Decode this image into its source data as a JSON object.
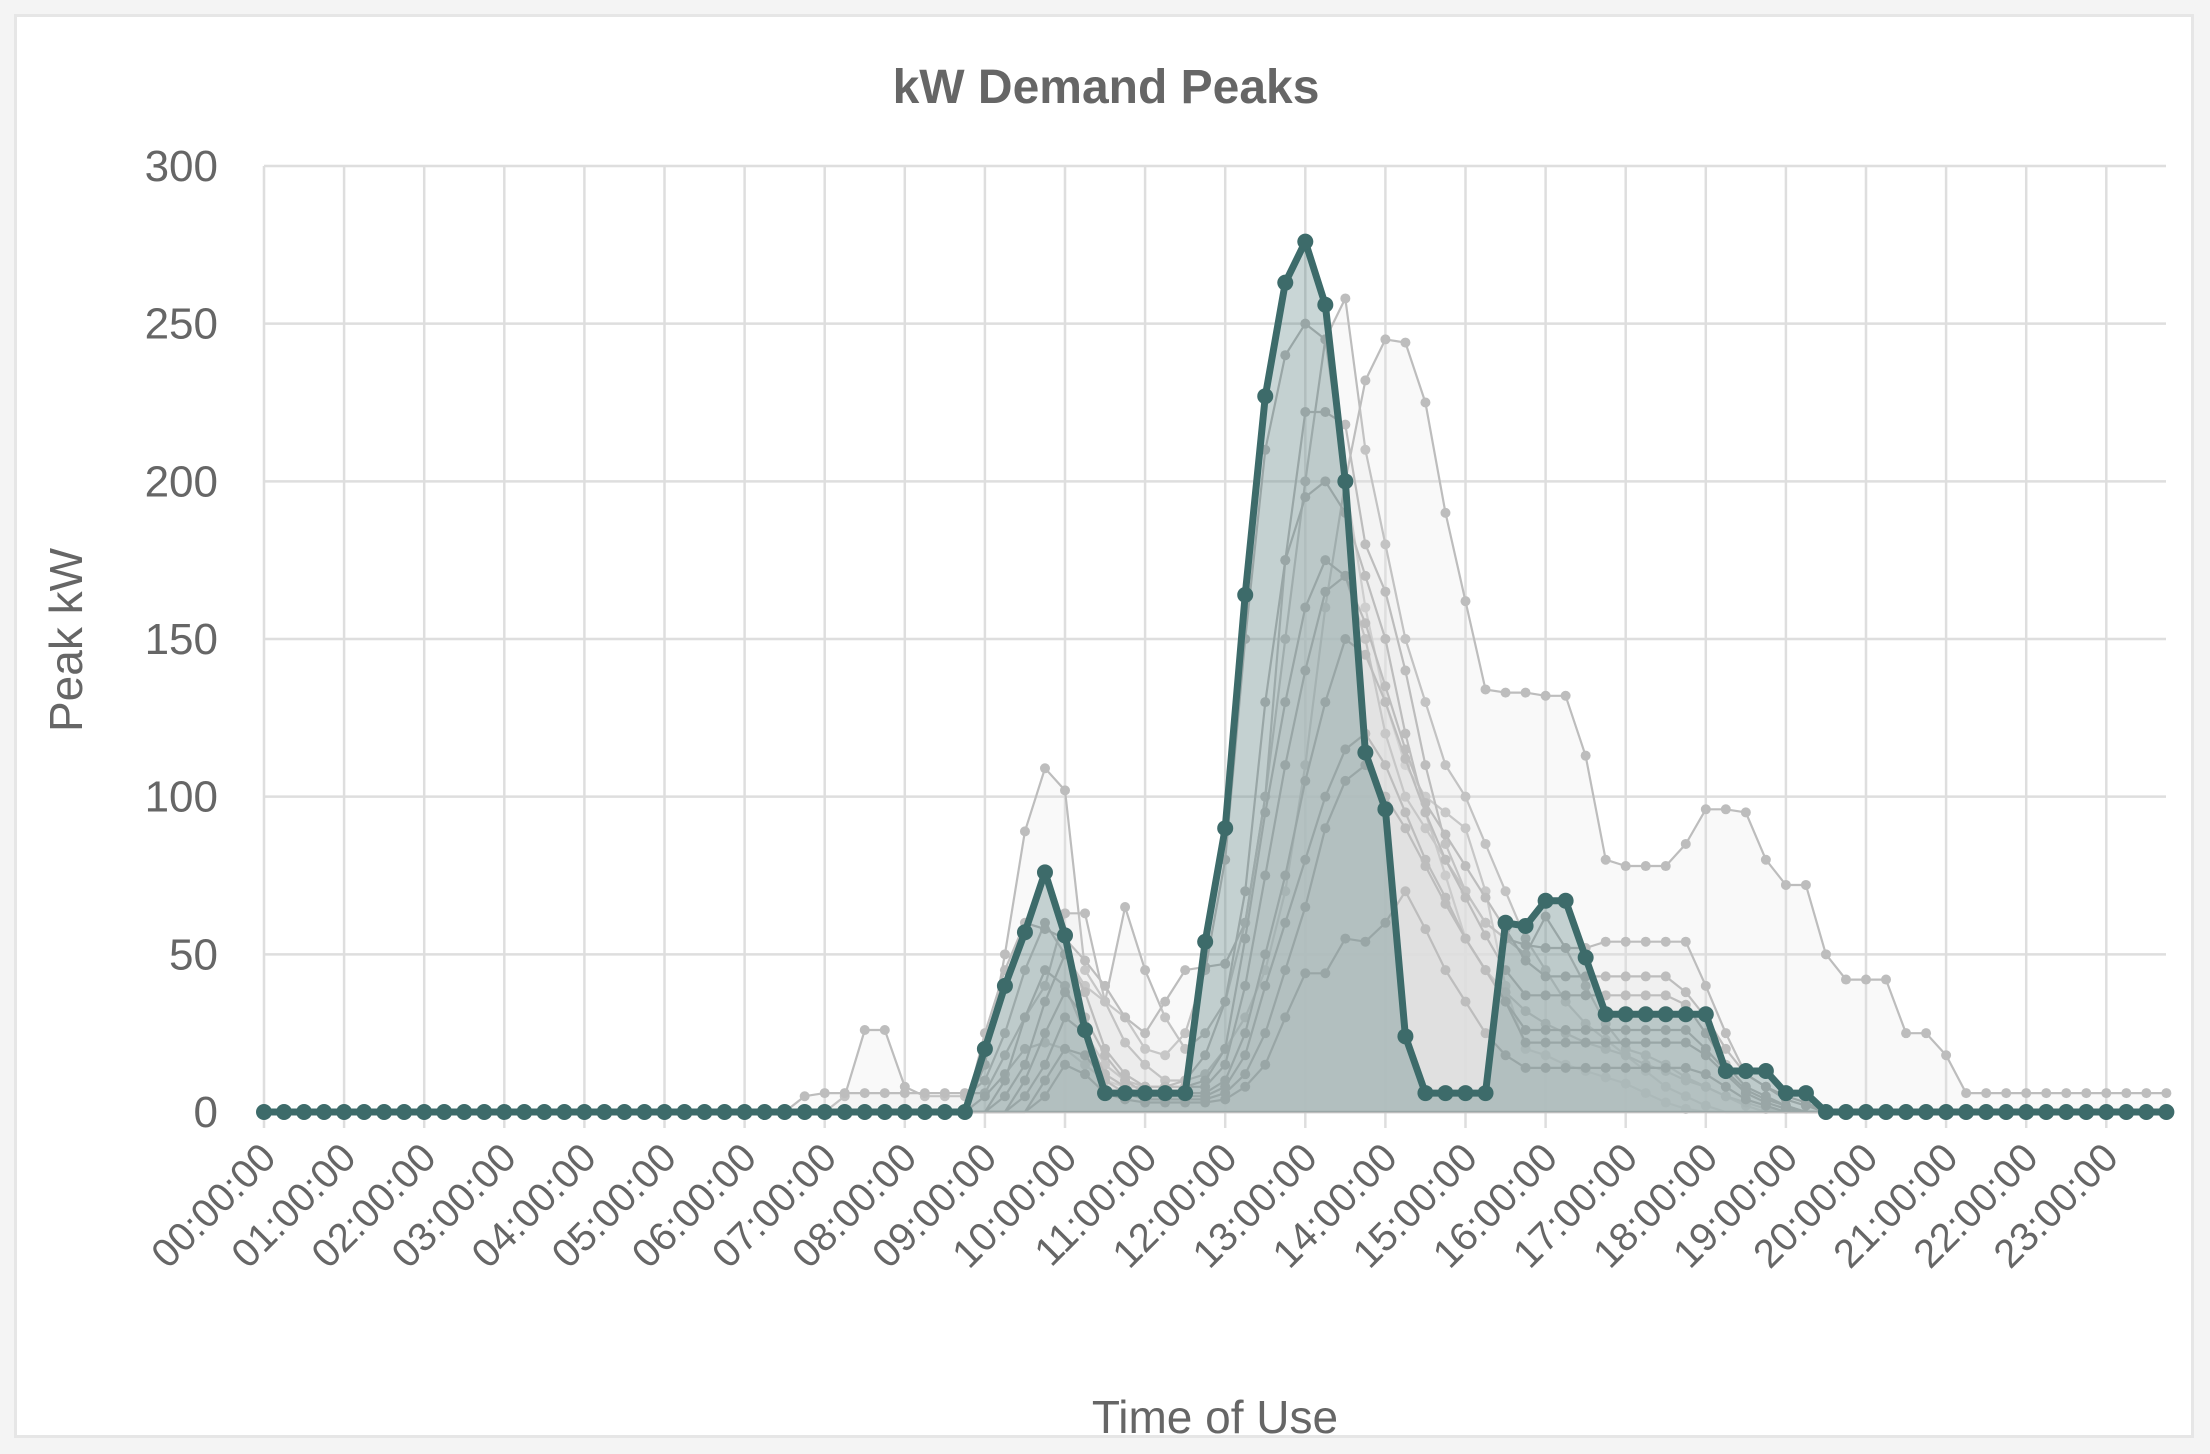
{
  "chart_data": {
    "type": "line",
    "title": "kW Demand Peaks",
    "xlabel": "Time of Use",
    "ylabel": "Peak kW",
    "ylim": [
      0,
      300
    ],
    "yticks": [
      "0",
      "50",
      "100",
      "150",
      "200",
      "250",
      "300"
    ],
    "xticks": [
      "00:00:00",
      "01:00:00",
      "02:00:00",
      "03:00:00",
      "04:00:00",
      "05:00:00",
      "06:00:00",
      "07:00:00",
      "08:00:00",
      "09:00:00",
      "10:00:00",
      "11:00:00",
      "12:00:00",
      "13:00:00",
      "14:00:00",
      "15:00:00",
      "16:00:00",
      "17:00:00",
      "18:00:00",
      "19:00:00",
      "20:00:00",
      "21:00:00",
      "22:00:00",
      "23:00:00"
    ],
    "x_interval": "15 min",
    "grid": true,
    "colors": {
      "highlight": "#3d6b6a",
      "highlight_fill": "#3d6b6a",
      "background": "#bdbdbd"
    },
    "highlight_series": {
      "values": [
        0,
        0,
        0,
        0,
        0,
        0,
        0,
        0,
        0,
        0,
        0,
        0,
        0,
        0,
        0,
        0,
        0,
        0,
        0,
        0,
        0,
        0,
        0,
        0,
        0,
        0,
        0,
        0,
        0,
        0,
        0,
        0,
        0,
        0,
        0,
        0,
        20,
        40,
        57,
        76,
        56,
        26,
        6,
        6,
        6,
        6,
        6,
        54,
        90,
        164,
        227,
        263,
        276,
        256,
        200,
        114,
        96,
        24,
        6,
        6,
        6,
        6,
        60,
        59,
        67,
        67,
        49,
        31,
        31,
        31,
        31,
        31,
        31,
        13,
        13,
        13,
        6,
        6,
        0,
        0,
        0,
        0,
        0,
        0,
        0,
        0,
        0,
        0,
        0,
        0,
        0,
        0,
        0,
        0,
        0,
        0
      ]
    },
    "background_series": [
      {
        "values": [
          0,
          0,
          0,
          0,
          0,
          0,
          0,
          0,
          0,
          0,
          0,
          0,
          0,
          0,
          0,
          0,
          0,
          0,
          0,
          0,
          0,
          0,
          0,
          0,
          0,
          0,
          0,
          0,
          0,
          0,
          0,
          0,
          0,
          0,
          0,
          0,
          15,
          50,
          89,
          109,
          102,
          45,
          35,
          30,
          20,
          18,
          25,
          45,
          80,
          150,
          210,
          240,
          250,
          245,
          200,
          160,
          130,
          110,
          100,
          95,
          90,
          70,
          40,
          20,
          18,
          15,
          13,
          11,
          9,
          6,
          3,
          1,
          0,
          0,
          0,
          0,
          0,
          0,
          0,
          0,
          0,
          0,
          0,
          0,
          0,
          0,
          0,
          0,
          0,
          0,
          0,
          0,
          0,
          0,
          0,
          0
        ]
      },
      {
        "values": [
          0,
          0,
          0,
          0,
          0,
          0,
          0,
          0,
          0,
          0,
          0,
          0,
          0,
          0,
          0,
          0,
          0,
          0,
          0,
          0,
          0,
          0,
          0,
          0,
          0,
          0,
          0,
          0,
          0,
          5,
          26,
          26,
          8,
          5,
          5,
          5,
          10,
          25,
          45,
          60,
          50,
          40,
          35,
          65,
          45,
          30,
          20,
          25,
          35,
          60,
          100,
          150,
          200,
          245,
          258,
          210,
          180,
          150,
          130,
          110,
          100,
          85,
          70,
          55,
          45,
          35,
          28,
          23,
          18,
          13,
          8,
          5,
          2,
          0,
          0,
          0,
          0,
          0,
          0,
          0,
          0,
          0,
          0,
          0,
          0,
          0,
          0,
          0,
          0,
          0,
          0,
          0,
          0,
          0,
          0,
          0
        ]
      },
      {
        "values": [
          0,
          0,
          0,
          0,
          0,
          0,
          0,
          0,
          0,
          0,
          0,
          0,
          0,
          0,
          0,
          0,
          0,
          0,
          0,
          0,
          0,
          0,
          0,
          0,
          0,
          0,
          0,
          5,
          6,
          6,
          6,
          6,
          6,
          6,
          6,
          6,
          6,
          18,
          30,
          40,
          63,
          63,
          35,
          22,
          15,
          10,
          10,
          12,
          20,
          30,
          45,
          70,
          110,
          160,
          200,
          232,
          245,
          244,
          225,
          190,
          162,
          134,
          133,
          133,
          132,
          132,
          113,
          80,
          78,
          78,
          78,
          85,
          96,
          96,
          95,
          80,
          72,
          72,
          50,
          42,
          42,
          42,
          25,
          25,
          18,
          6,
          6,
          6,
          6,
          6,
          6,
          6,
          6,
          6,
          6,
          6
        ]
      },
      {
        "values": [
          0,
          0,
          0,
          0,
          0,
          0,
          0,
          0,
          0,
          0,
          0,
          0,
          0,
          0,
          0,
          0,
          0,
          0,
          0,
          0,
          0,
          0,
          0,
          0,
          0,
          0,
          0,
          0,
          0,
          0,
          0,
          0,
          0,
          0,
          0,
          0,
          0,
          0,
          0,
          0,
          0,
          0,
          0,
          0,
          0,
          0,
          0,
          0,
          0,
          0,
          0,
          0,
          0,
          0,
          0,
          0,
          0,
          0,
          0,
          0,
          0,
          0,
          0,
          0,
          0,
          0,
          0,
          0,
          0,
          0,
          0,
          0,
          0,
          0,
          0,
          0,
          0,
          0,
          0,
          0,
          0,
          0,
          0,
          0,
          0,
          0,
          0,
          0,
          0,
          0,
          0,
          0,
          0,
          0,
          0,
          0
        ]
      },
      {
        "values": [
          0,
          0,
          0,
          0,
          0,
          0,
          0,
          0,
          0,
          0,
          0,
          0,
          0,
          0,
          0,
          0,
          0,
          0,
          0,
          0,
          0,
          0,
          0,
          0,
          0,
          0,
          0,
          0,
          0,
          0,
          0,
          0,
          0,
          0,
          0,
          0,
          25,
          45,
          60,
          58,
          55,
          48,
          40,
          30,
          25,
          35,
          45,
          46,
          47,
          60,
          100,
          175,
          222,
          222,
          218,
          180,
          165,
          140,
          110,
          85,
          70,
          60,
          55,
          50,
          62,
          52,
          40,
          28,
          20,
          18,
          15,
          11,
          8,
          5,
          2,
          0,
          0,
          0,
          0,
          0,
          0,
          0,
          0,
          0,
          0,
          0,
          0,
          0,
          0,
          0,
          0,
          0,
          0,
          0,
          0,
          0
        ]
      },
      {
        "values": [
          0,
          0,
          0,
          0,
          0,
          0,
          0,
          0,
          0,
          0,
          0,
          0,
          0,
          0,
          0,
          0,
          0,
          0,
          0,
          0,
          0,
          0,
          0,
          0,
          0,
          0,
          0,
          0,
          0,
          0,
          0,
          0,
          0,
          0,
          0,
          0,
          5,
          12,
          20,
          22,
          20,
          15,
          10,
          8,
          8,
          8,
          10,
          18,
          35,
          70,
          130,
          175,
          195,
          200,
          190,
          170,
          150,
          120,
          95,
          75,
          55,
          45,
          38,
          32,
          28,
          25,
          22,
          20,
          18,
          15,
          13,
          10,
          8,
          5,
          3,
          1,
          0,
          0,
          0,
          0,
          0,
          0,
          0,
          0,
          0,
          0,
          0,
          0,
          0,
          0,
          0,
          0,
          0,
          0,
          0,
          0
        ]
      },
      {
        "values": [
          0,
          0,
          0,
          0,
          0,
          0,
          0,
          0,
          0,
          0,
          0,
          0,
          0,
          0,
          0,
          0,
          0,
          0,
          0,
          0,
          0,
          0,
          0,
          0,
          0,
          0,
          0,
          0,
          0,
          0,
          0,
          0,
          0,
          0,
          0,
          0,
          0,
          10,
          30,
          45,
          40,
          25,
          15,
          10,
          8,
          8,
          8,
          10,
          20,
          55,
          95,
          130,
          160,
          175,
          170,
          150,
          120,
          100,
          90,
          80,
          70,
          60,
          55,
          53,
          52,
          52,
          52,
          54,
          54,
          54,
          54,
          54,
          40,
          25,
          12,
          8,
          5,
          3,
          0,
          0,
          0,
          0,
          0,
          0,
          0,
          0,
          0,
          0,
          0,
          0,
          0,
          0,
          0,
          0,
          0,
          0
        ]
      },
      {
        "values": [
          0,
          0,
          0,
          0,
          0,
          0,
          0,
          0,
          0,
          0,
          0,
          0,
          0,
          0,
          0,
          0,
          0,
          0,
          0,
          0,
          0,
          0,
          0,
          0,
          0,
          0,
          0,
          0,
          0,
          0,
          0,
          0,
          0,
          0,
          0,
          0,
          0,
          5,
          15,
          35,
          50,
          38,
          20,
          12,
          8,
          8,
          8,
          8,
          15,
          40,
          75,
          110,
          140,
          165,
          170,
          155,
          135,
          115,
          98,
          88,
          78,
          68,
          58,
          48,
          43,
          43,
          43,
          43,
          43,
          43,
          43,
          38,
          30,
          20,
          12,
          8,
          4,
          2,
          0,
          0,
          0,
          0,
          0,
          0,
          0,
          0,
          0,
          0,
          0,
          0,
          0,
          0,
          0,
          0,
          0,
          0
        ]
      },
      {
        "values": [
          0,
          0,
          0,
          0,
          0,
          0,
          0,
          0,
          0,
          0,
          0,
          0,
          0,
          0,
          0,
          0,
          0,
          0,
          0,
          0,
          0,
          0,
          0,
          0,
          0,
          0,
          0,
          0,
          0,
          0,
          0,
          0,
          0,
          0,
          0,
          0,
          0,
          0,
          10,
          25,
          38,
          30,
          18,
          10,
          6,
          6,
          6,
          6,
          10,
          25,
          50,
          75,
          105,
          130,
          150,
          145,
          130,
          112,
          95,
          80,
          68,
          56,
          45,
          37,
          37,
          37,
          37,
          37,
          37,
          37,
          37,
          34,
          25,
          15,
          8,
          5,
          2,
          0,
          0,
          0,
          0,
          0,
          0,
          0,
          0,
          0,
          0,
          0,
          0,
          0,
          0,
          0,
          0,
          0,
          0,
          0
        ]
      },
      {
        "values": [
          0,
          0,
          0,
          0,
          0,
          0,
          0,
          0,
          0,
          0,
          0,
          0,
          0,
          0,
          0,
          0,
          0,
          0,
          0,
          0,
          0,
          0,
          0,
          0,
          0,
          0,
          0,
          0,
          0,
          0,
          0,
          0,
          0,
          0,
          0,
          0,
          0,
          0,
          5,
          15,
          30,
          25,
          12,
          8,
          5,
          5,
          5,
          5,
          8,
          18,
          40,
          60,
          80,
          100,
          115,
          120,
          110,
          95,
          80,
          68,
          55,
          45,
          35,
          26,
          26,
          26,
          26,
          26,
          26,
          26,
          26,
          26,
          20,
          13,
          7,
          4,
          2,
          0,
          0,
          0,
          0,
          0,
          0,
          0,
          0,
          0,
          0,
          0,
          0,
          0,
          0,
          0,
          0,
          0,
          0,
          0
        ]
      },
      {
        "values": [
          0,
          0,
          0,
          0,
          0,
          0,
          0,
          0,
          0,
          0,
          0,
          0,
          0,
          0,
          0,
          0,
          0,
          0,
          0,
          0,
          0,
          0,
          0,
          0,
          0,
          0,
          0,
          0,
          0,
          0,
          0,
          0,
          0,
          0,
          0,
          0,
          0,
          0,
          0,
          10,
          20,
          18,
          10,
          6,
          4,
          4,
          4,
          4,
          6,
          12,
          25,
          45,
          65,
          90,
          105,
          110,
          100,
          90,
          78,
          66,
          55,
          45,
          35,
          22,
          22,
          22,
          22,
          22,
          22,
          22,
          22,
          22,
          18,
          12,
          6,
          3,
          1,
          0,
          0,
          0,
          0,
          0,
          0,
          0,
          0,
          0,
          0,
          0,
          0,
          0,
          0,
          0,
          0,
          0,
          0,
          0
        ]
      },
      {
        "values": [
          0,
          0,
          0,
          0,
          0,
          0,
          0,
          0,
          0,
          0,
          0,
          0,
          0,
          0,
          0,
          0,
          0,
          0,
          0,
          0,
          0,
          0,
          0,
          0,
          0,
          0,
          0,
          0,
          0,
          0,
          0,
          0,
          0,
          0,
          0,
          0,
          0,
          0,
          0,
          5,
          15,
          12,
          6,
          4,
          3,
          3,
          3,
          3,
          4,
          8,
          15,
          30,
          44,
          44,
          55,
          54,
          60,
          70,
          58,
          45,
          35,
          25,
          18,
          14,
          14,
          14,
          14,
          14,
          14,
          14,
          14,
          14,
          12,
          8,
          4,
          2,
          0,
          0,
          0,
          0,
          0,
          0,
          0,
          0,
          0,
          0,
          0,
          0,
          0,
          0,
          0,
          0,
          0,
          0,
          0,
          0
        ]
      },
      {
        "values": [
          0,
          0,
          0,
          0,
          0,
          0,
          0,
          0,
          0,
          0,
          0,
          0,
          0,
          0,
          0,
          0,
          0,
          0,
          0,
          0,
          0,
          0,
          0,
          0,
          0,
          0,
          0,
          0,
          0,
          0,
          0,
          0,
          0,
          0,
          0,
          0,
          0,
          0,
          0,
          0,
          0,
          0,
          0,
          0,
          0,
          0,
          0,
          0,
          0,
          0,
          0,
          0,
          0,
          0,
          0,
          0,
          0,
          0,
          0,
          0,
          0,
          0,
          0,
          0,
          0,
          0,
          0,
          0,
          0,
          0,
          0,
          0,
          0,
          0,
          0,
          0,
          0,
          0,
          0,
          0,
          0,
          0,
          0,
          0,
          0,
          0,
          0,
          0,
          0,
          0,
          0,
          0,
          0,
          0,
          0,
          0
        ]
      }
    ]
  }
}
